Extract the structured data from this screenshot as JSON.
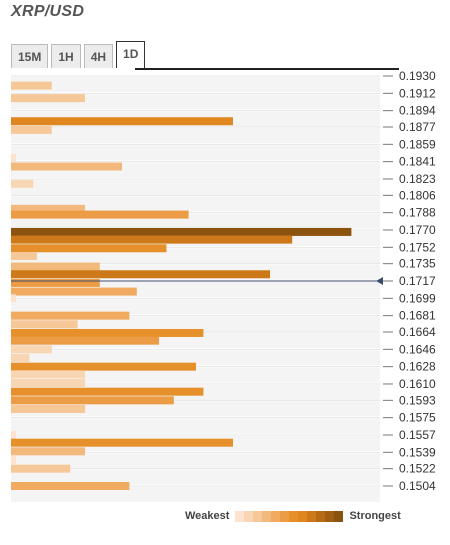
{
  "header": {
    "title": "XRP/USD"
  },
  "tabs": [
    {
      "label": "15M",
      "active": false
    },
    {
      "label": "1H",
      "active": false
    },
    {
      "label": "4H",
      "active": false
    },
    {
      "label": "1D",
      "active": true
    }
  ],
  "legend": {
    "weakest": "Weakest",
    "strongest": "Strongest",
    "colors": [
      "#fbe3cf",
      "#f8d5b3",
      "#f6c797",
      "#f3b97c",
      "#f0ab60",
      "#eb9c45",
      "#e6902b",
      "#df861f",
      "#cd7819",
      "#b66a14",
      "#a05e12",
      "#8c520f"
    ]
  },
  "chart_data": {
    "type": "bar",
    "orientation": "horizontal",
    "title": "XRP/USD",
    "ylim": [
      0.1495,
      0.1935
    ],
    "tick_labels": [
      "0.1930",
      "0.1912",
      "0.1894",
      "0.1877",
      "0.1859",
      "0.1841",
      "0.1823",
      "0.1806",
      "0.1788",
      "0.1770",
      "0.1752",
      "0.1735",
      "0.1717",
      "0.1699",
      "0.1681",
      "0.1664",
      "0.1646",
      "0.1628",
      "0.1610",
      "0.1593",
      "0.1575",
      "0.1557",
      "0.1539",
      "0.1522",
      "0.1504"
    ],
    "current_price": 0.1717,
    "bar_scale_max": 100,
    "bars": [
      {
        "price": 0.192,
        "strength": 11,
        "level": 2
      },
      {
        "price": 0.1907,
        "strength": 20,
        "level": 2
      },
      {
        "price": 0.1883,
        "strength": 60,
        "level": 7
      },
      {
        "price": 0.1874,
        "strength": 11,
        "level": 2
      },
      {
        "price": 0.1845,
        "strength": 1,
        "level": 0
      },
      {
        "price": 0.1836,
        "strength": 30,
        "level": 3
      },
      {
        "price": 0.1818,
        "strength": 6,
        "level": 1
      },
      {
        "price": 0.1792,
        "strength": 20,
        "level": 3
      },
      {
        "price": 0.1786,
        "strength": 48,
        "level": 5
      },
      {
        "price": 0.1768,
        "strength": 92,
        "level": 11
      },
      {
        "price": 0.176,
        "strength": 76,
        "level": 8
      },
      {
        "price": 0.1751,
        "strength": 42,
        "level": 6
      },
      {
        "price": 0.1743,
        "strength": 7,
        "level": 2
      },
      {
        "price": 0.1732,
        "strength": 24,
        "level": 3
      },
      {
        "price": 0.1724,
        "strength": 70,
        "level": 8
      },
      {
        "price": 0.1715,
        "strength": 24,
        "level": 5
      },
      {
        "price": 0.1706,
        "strength": 34,
        "level": 4
      },
      {
        "price": 0.1699,
        "strength": 1,
        "level": 0
      },
      {
        "price": 0.1681,
        "strength": 32,
        "level": 4
      },
      {
        "price": 0.1672,
        "strength": 18,
        "level": 2
      },
      {
        "price": 0.1663,
        "strength": 52,
        "level": 6
      },
      {
        "price": 0.1655,
        "strength": 40,
        "level": 5
      },
      {
        "price": 0.1646,
        "strength": 11,
        "level": 1
      },
      {
        "price": 0.1637,
        "strength": 5,
        "level": 1
      },
      {
        "price": 0.1628,
        "strength": 50,
        "level": 6
      },
      {
        "price": 0.162,
        "strength": 20,
        "level": 1
      },
      {
        "price": 0.1611,
        "strength": 20,
        "level": 1
      },
      {
        "price": 0.1602,
        "strength": 52,
        "level": 6
      },
      {
        "price": 0.1593,
        "strength": 44,
        "level": 5
      },
      {
        "price": 0.1584,
        "strength": 20,
        "level": 2
      },
      {
        "price": 0.1557,
        "strength": 1,
        "level": 0
      },
      {
        "price": 0.1549,
        "strength": 60,
        "level": 6
      },
      {
        "price": 0.154,
        "strength": 20,
        "level": 3
      },
      {
        "price": 0.1531,
        "strength": 1,
        "level": 0
      },
      {
        "price": 0.1522,
        "strength": 16,
        "level": 2
      },
      {
        "price": 0.1504,
        "strength": 32,
        "level": 4
      }
    ]
  }
}
